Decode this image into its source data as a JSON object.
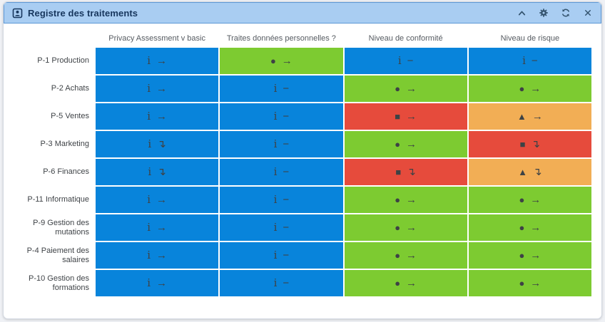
{
  "widget": {
    "title": "Registre des traitements",
    "title_icon": "id-card-icon",
    "controls": [
      {
        "name": "collapse",
        "icon": "chevron-up-icon"
      },
      {
        "name": "settings",
        "icon": "gear-icon"
      },
      {
        "name": "refresh",
        "icon": "refresh-icon"
      },
      {
        "name": "close",
        "icon": "close-icon"
      }
    ]
  },
  "palette": {
    "blue": "#0884db",
    "green": "#7dcb31",
    "red": "#e64b3c",
    "orange": "#f2ae55",
    "header_bg": "#a9cdf2",
    "header_text": "#17365d",
    "cell_icon": "#3e4245"
  },
  "glyphs": {
    "i": "i",
    "circle": "●",
    "square": "■",
    "triangle": "▲",
    "right": "→",
    "flat": "−",
    "down": "↴"
  },
  "table": {
    "columns": [
      "Privacy Assessment v basic",
      "Traites données personnelles ?",
      "Niveau de conformité",
      "Niveau de risque"
    ],
    "rows": [
      {
        "label": "P-1 Production",
        "cells": [
          {
            "color": "blue",
            "symbol": "i",
            "trend": "right"
          },
          {
            "color": "green",
            "symbol": "circle",
            "trend": "right"
          },
          {
            "color": "blue",
            "symbol": "i",
            "trend": "flat"
          },
          {
            "color": "blue",
            "symbol": "i",
            "trend": "flat"
          }
        ]
      },
      {
        "label": "P-2 Achats",
        "cells": [
          {
            "color": "blue",
            "symbol": "i",
            "trend": "right"
          },
          {
            "color": "blue",
            "symbol": "i",
            "trend": "flat"
          },
          {
            "color": "green",
            "symbol": "circle",
            "trend": "right"
          },
          {
            "color": "green",
            "symbol": "circle",
            "trend": "right"
          }
        ]
      },
      {
        "label": "P-5 Ventes",
        "cells": [
          {
            "color": "blue",
            "symbol": "i",
            "trend": "right"
          },
          {
            "color": "blue",
            "symbol": "i",
            "trend": "flat"
          },
          {
            "color": "red",
            "symbol": "square",
            "trend": "right"
          },
          {
            "color": "orange",
            "symbol": "triangle",
            "trend": "right"
          }
        ]
      },
      {
        "label": "P-3 Marketing",
        "cells": [
          {
            "color": "blue",
            "symbol": "i",
            "trend": "down"
          },
          {
            "color": "blue",
            "symbol": "i",
            "trend": "flat"
          },
          {
            "color": "green",
            "symbol": "circle",
            "trend": "right"
          },
          {
            "color": "red",
            "symbol": "square",
            "trend": "down"
          }
        ]
      },
      {
        "label": "P-6 Finances",
        "cells": [
          {
            "color": "blue",
            "symbol": "i",
            "trend": "down"
          },
          {
            "color": "blue",
            "symbol": "i",
            "trend": "flat"
          },
          {
            "color": "red",
            "symbol": "square",
            "trend": "down"
          },
          {
            "color": "orange",
            "symbol": "triangle",
            "trend": "down"
          }
        ]
      },
      {
        "label": "P-11 Informatique",
        "cells": [
          {
            "color": "blue",
            "symbol": "i",
            "trend": "right"
          },
          {
            "color": "blue",
            "symbol": "i",
            "trend": "flat"
          },
          {
            "color": "green",
            "symbol": "circle",
            "trend": "right"
          },
          {
            "color": "green",
            "symbol": "circle",
            "trend": "right"
          }
        ]
      },
      {
        "label": "P-9 Gestion des mutations",
        "cells": [
          {
            "color": "blue",
            "symbol": "i",
            "trend": "right"
          },
          {
            "color": "blue",
            "symbol": "i",
            "trend": "flat"
          },
          {
            "color": "green",
            "symbol": "circle",
            "trend": "right"
          },
          {
            "color": "green",
            "symbol": "circle",
            "trend": "right"
          }
        ]
      },
      {
        "label": "P-4 Paiement des salaires",
        "cells": [
          {
            "color": "blue",
            "symbol": "i",
            "trend": "right"
          },
          {
            "color": "blue",
            "symbol": "i",
            "trend": "flat"
          },
          {
            "color": "green",
            "symbol": "circle",
            "trend": "right"
          },
          {
            "color": "green",
            "symbol": "circle",
            "trend": "right"
          }
        ]
      },
      {
        "label": "P-10 Gestion des formations",
        "cells": [
          {
            "color": "blue",
            "symbol": "i",
            "trend": "right"
          },
          {
            "color": "blue",
            "symbol": "i",
            "trend": "flat"
          },
          {
            "color": "green",
            "symbol": "circle",
            "trend": "right"
          },
          {
            "color": "green",
            "symbol": "circle",
            "trend": "right"
          }
        ]
      }
    ]
  }
}
